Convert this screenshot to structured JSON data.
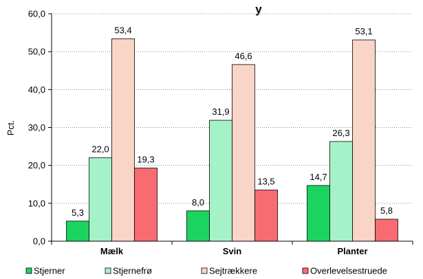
{
  "chart_data": {
    "type": "bar",
    "title": "y",
    "ylabel": "Pct.",
    "xlabel": "",
    "ylim": [
      0,
      60
    ],
    "ytick_step": 10,
    "ytick_labels": [
      "0,0",
      "10,0",
      "20,0",
      "30,0",
      "40,0",
      "50,0",
      "60,0"
    ],
    "grid": true,
    "legend_position": "bottom",
    "categories": [
      "Mælk",
      "Svin",
      "Planter"
    ],
    "series": [
      {
        "name": "Stjerner",
        "color": "#1bd460",
        "values": [
          5.3,
          8.0,
          14.7
        ],
        "labels": [
          "5,3",
          "8,0",
          "14,7"
        ]
      },
      {
        "name": "Stjernefrø",
        "color": "#a6f2c8",
        "values": [
          22.0,
          31.9,
          26.3
        ],
        "labels": [
          "22,0",
          "31,9",
          "26,3"
        ]
      },
      {
        "name": "Sejtrækkere",
        "color": "#f9d5c7",
        "values": [
          53.4,
          46.6,
          53.1
        ],
        "labels": [
          "53,4",
          "46,6",
          "53,1"
        ]
      },
      {
        "name": "Overlevelsestruede",
        "color": "#f96b73",
        "values": [
          19.3,
          13.5,
          5.8
        ],
        "labels": [
          "19,3",
          "13,5",
          "5,8"
        ]
      }
    ]
  }
}
